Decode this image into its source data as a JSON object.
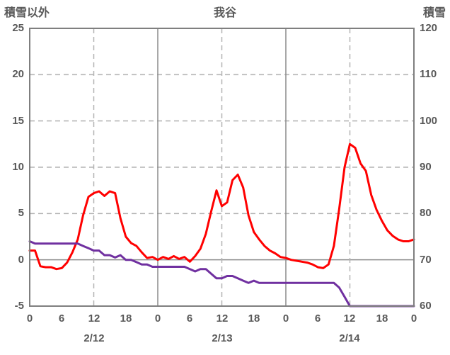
{
  "chart_data": {
    "type": "line",
    "title": "我谷",
    "x": {
      "range": [
        0,
        72
      ],
      "tick_hours": [
        0,
        6,
        12,
        18,
        24,
        30,
        36,
        42,
        48,
        54,
        60,
        66,
        72
      ],
      "tick_labels": [
        "0",
        "6",
        "12",
        "18",
        "0",
        "6",
        "12",
        "18",
        "0",
        "6",
        "12",
        "18",
        "0"
      ],
      "day_labels": [
        {
          "label": "2/12",
          "center_hour": 12
        },
        {
          "label": "2/13",
          "center_hour": 36
        },
        {
          "label": "2/14",
          "center_hour": 60
        }
      ]
    },
    "left_axis": {
      "title": "積雪以外",
      "range": [
        -5,
        25
      ],
      "ticks": [
        25,
        20,
        15,
        10,
        5,
        0,
        -5
      ],
      "tick_labels": [
        "25",
        "20",
        "15",
        "10",
        "5",
        "0",
        "-5"
      ]
    },
    "right_axis": {
      "title": "積雪",
      "range": [
        60,
        120
      ],
      "ticks": [
        120,
        110,
        100,
        90,
        80,
        70,
        60
      ],
      "tick_labels": [
        "120",
        "110",
        "100",
        "90",
        "80",
        "70",
        "60"
      ]
    },
    "grid": {
      "h_dashed": [
        20,
        15,
        10,
        5
      ],
      "h_solid": [
        0
      ],
      "v_dashed_hours": [
        12,
        36,
        60
      ],
      "v_solid_hours": [
        24,
        48
      ]
    },
    "series": [
      {
        "name": "積雪以外",
        "axis": "left",
        "color": "#ff0000",
        "values": [
          1.0,
          1.0,
          -0.7,
          -0.8,
          -0.8,
          -1.0,
          -0.9,
          -0.3,
          0.8,
          2.2,
          4.8,
          6.8,
          7.2,
          7.4,
          6.9,
          7.4,
          7.2,
          4.5,
          2.5,
          1.8,
          1.5,
          0.8,
          0.2,
          0.3,
          0.0,
          0.3,
          0.1,
          0.4,
          0.1,
          0.3,
          -0.2,
          0.4,
          1.2,
          2.8,
          5.2,
          7.5,
          5.8,
          6.2,
          8.6,
          9.2,
          7.8,
          4.8,
          3.0,
          2.2,
          1.5,
          1.0,
          0.7,
          0.3,
          0.2,
          0.0,
          -0.1,
          -0.2,
          -0.3,
          -0.5,
          -0.8,
          -0.9,
          -0.5,
          1.5,
          5.5,
          10.0,
          12.5,
          12.1,
          10.4,
          9.6,
          7.0,
          5.4,
          4.2,
          3.2,
          2.6,
          2.2,
          2.0,
          2.0,
          2.2
        ]
      },
      {
        "name": "積雪",
        "axis": "right",
        "color": "#7030a0",
        "values": [
          74,
          73.5,
          73.5,
          73.5,
          73.5,
          73.5,
          73.5,
          73.5,
          73.5,
          73.5,
          73,
          72.5,
          72,
          72,
          71,
          71,
          70.5,
          71,
          70,
          70,
          69.5,
          69,
          69,
          68.5,
          68.5,
          68.5,
          68.5,
          68.5,
          68.5,
          68.5,
          68,
          67.5,
          68,
          68,
          67,
          66,
          66,
          66.5,
          66.5,
          66,
          65.5,
          65,
          65.5,
          65,
          65,
          65,
          65,
          65,
          65,
          65,
          65,
          65,
          65,
          65,
          65,
          65,
          65,
          65,
          64,
          62,
          60,
          60,
          60,
          60,
          60,
          60,
          60,
          60,
          60,
          60,
          60,
          60,
          60
        ]
      }
    ],
    "colors": {
      "red_series": "#ff0000",
      "purple_series": "#7030a0",
      "grid_dashed": "#b3b3b3",
      "grid_solid": "#8c8c8c",
      "frame": "#7f7f7f",
      "text": "#595959",
      "background": "#ffffff"
    }
  }
}
